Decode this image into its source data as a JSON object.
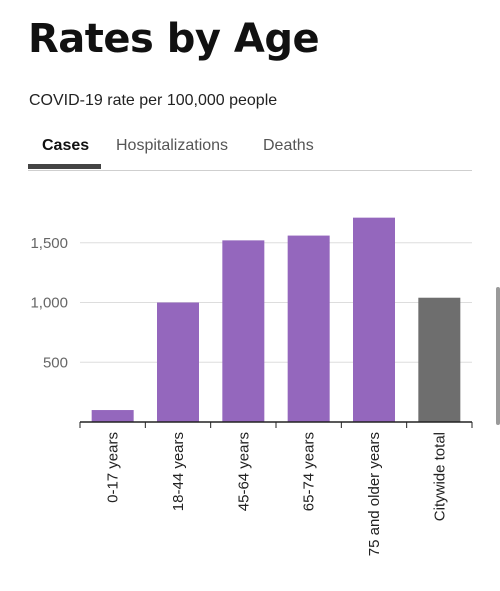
{
  "page": {
    "title": "Rates by Age",
    "subtitle": "COVID-19 rate per 100,000 people"
  },
  "tabs": [
    {
      "label": "Cases",
      "active": true
    },
    {
      "label": "Hospitalizations",
      "active": false
    },
    {
      "label": "Deaths",
      "active": false
    }
  ],
  "chart_data": {
    "type": "bar",
    "categories": [
      "0-17 years",
      "18-44 years",
      "45-64 years",
      "65-74 years",
      "75 and older years",
      "Citywide total"
    ],
    "values": [
      100,
      1000,
      1520,
      1560,
      1710,
      1040
    ],
    "title": "",
    "xlabel": "",
    "ylabel": "",
    "ylim": [
      0,
      1900
    ],
    "yticks": [
      500,
      1000,
      1500
    ],
    "ytick_labels": [
      "500",
      "1,000",
      "1,500"
    ],
    "grid": true,
    "legend": "none",
    "colors": {
      "age_group": "#9467bd",
      "citywide": "#6e6e6e",
      "gridline": "#dddddd",
      "axis": "#222222",
      "tick_label": "#666666"
    },
    "highlight_category": "Citywide total"
  }
}
